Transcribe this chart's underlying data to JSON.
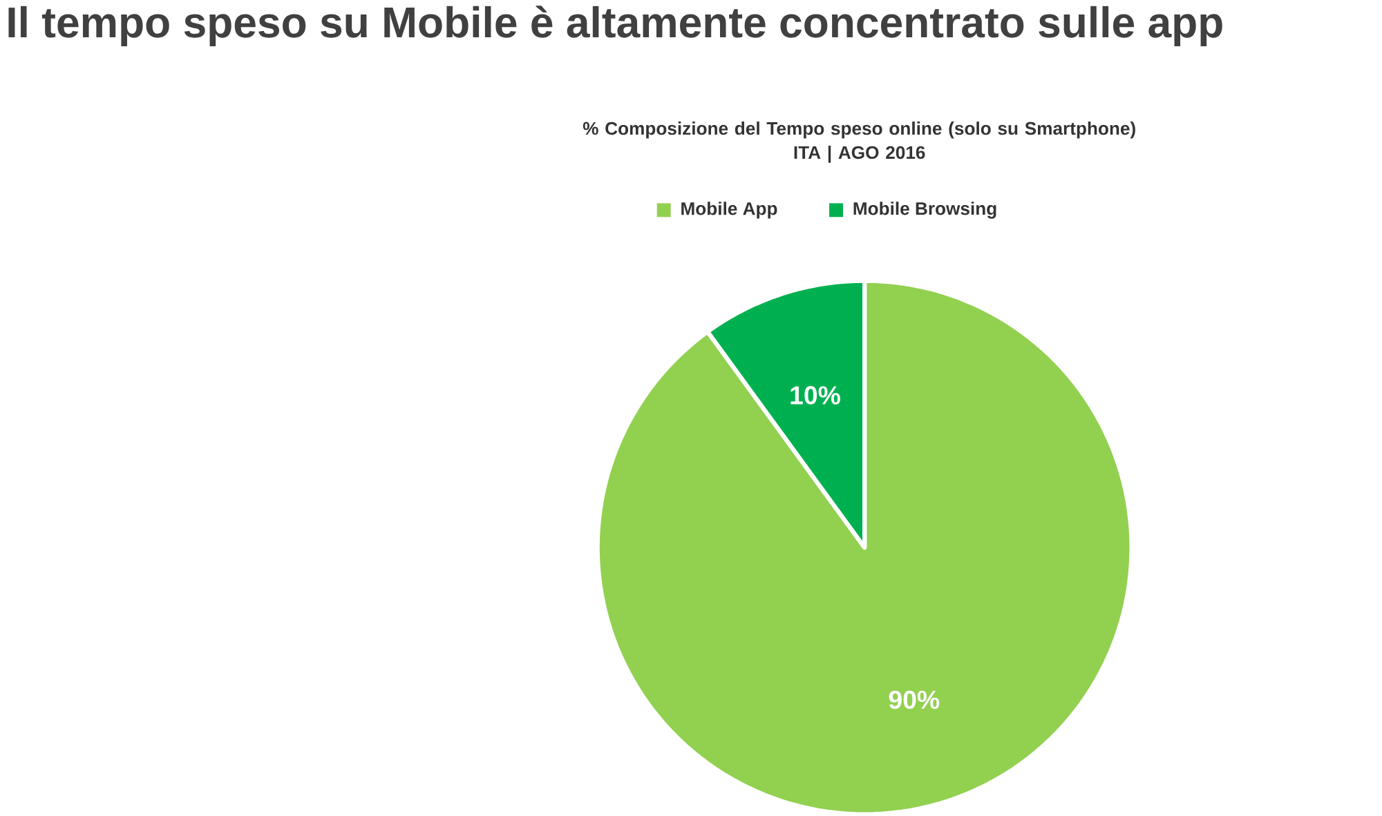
{
  "chart_data": {
    "type": "pie",
    "title": "Il tempo speso su Mobile è altamente concentrato sulle app",
    "subtitle": "% Composizione del Tempo speso online (solo su Smartphone)\nITA | AGO 2016",
    "categories": [
      "Mobile App",
      "Mobile Browsing"
    ],
    "values": [
      90,
      10
    ],
    "colors": [
      "#92d050",
      "#00b050"
    ],
    "value_labels": [
      "90%",
      "10%"
    ],
    "legend": "top"
  }
}
